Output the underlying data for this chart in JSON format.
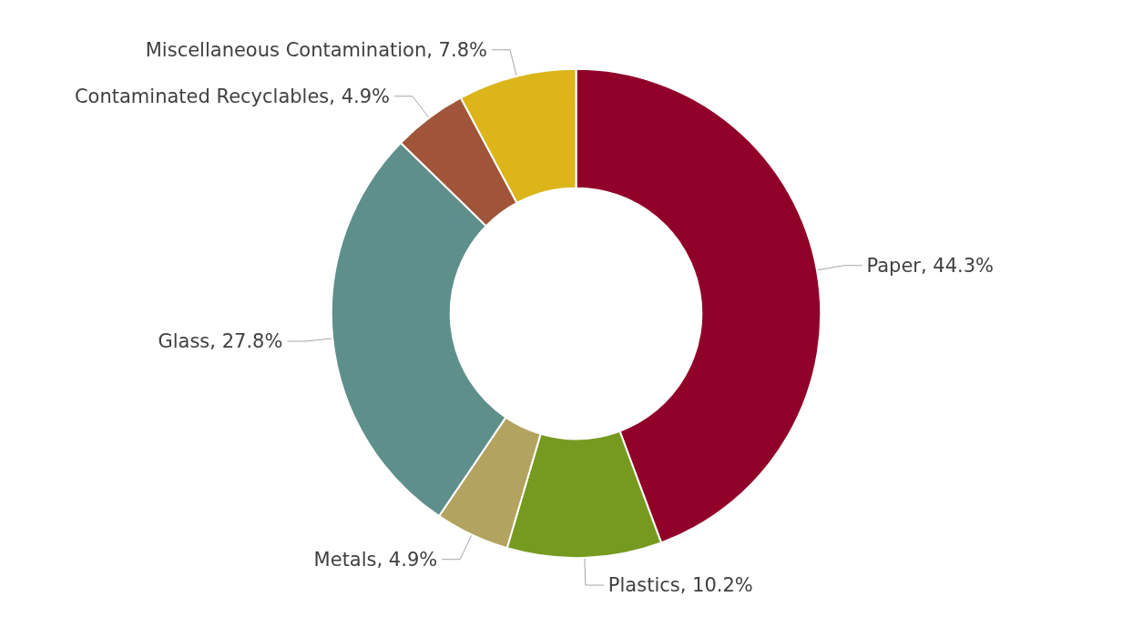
{
  "chart_data": {
    "type": "donut",
    "categories": [
      "Paper",
      "Plastics",
      "Metals",
      "Glass",
      "Contaminated Recyclables",
      "Miscellaneous Contamination"
    ],
    "values": [
      44.3,
      10.2,
      4.9,
      27.8,
      4.9,
      7.8
    ],
    "value_labels": [
      "44.3%",
      "10.2%",
      "4.9%",
      "27.8%",
      "4.9%",
      "7.8%"
    ],
    "colors": [
      "#900028",
      "#769a20",
      "#b3a360",
      "#5f8f8b",
      "#a0553a",
      "#dbb51a"
    ],
    "legend": false
  }
}
